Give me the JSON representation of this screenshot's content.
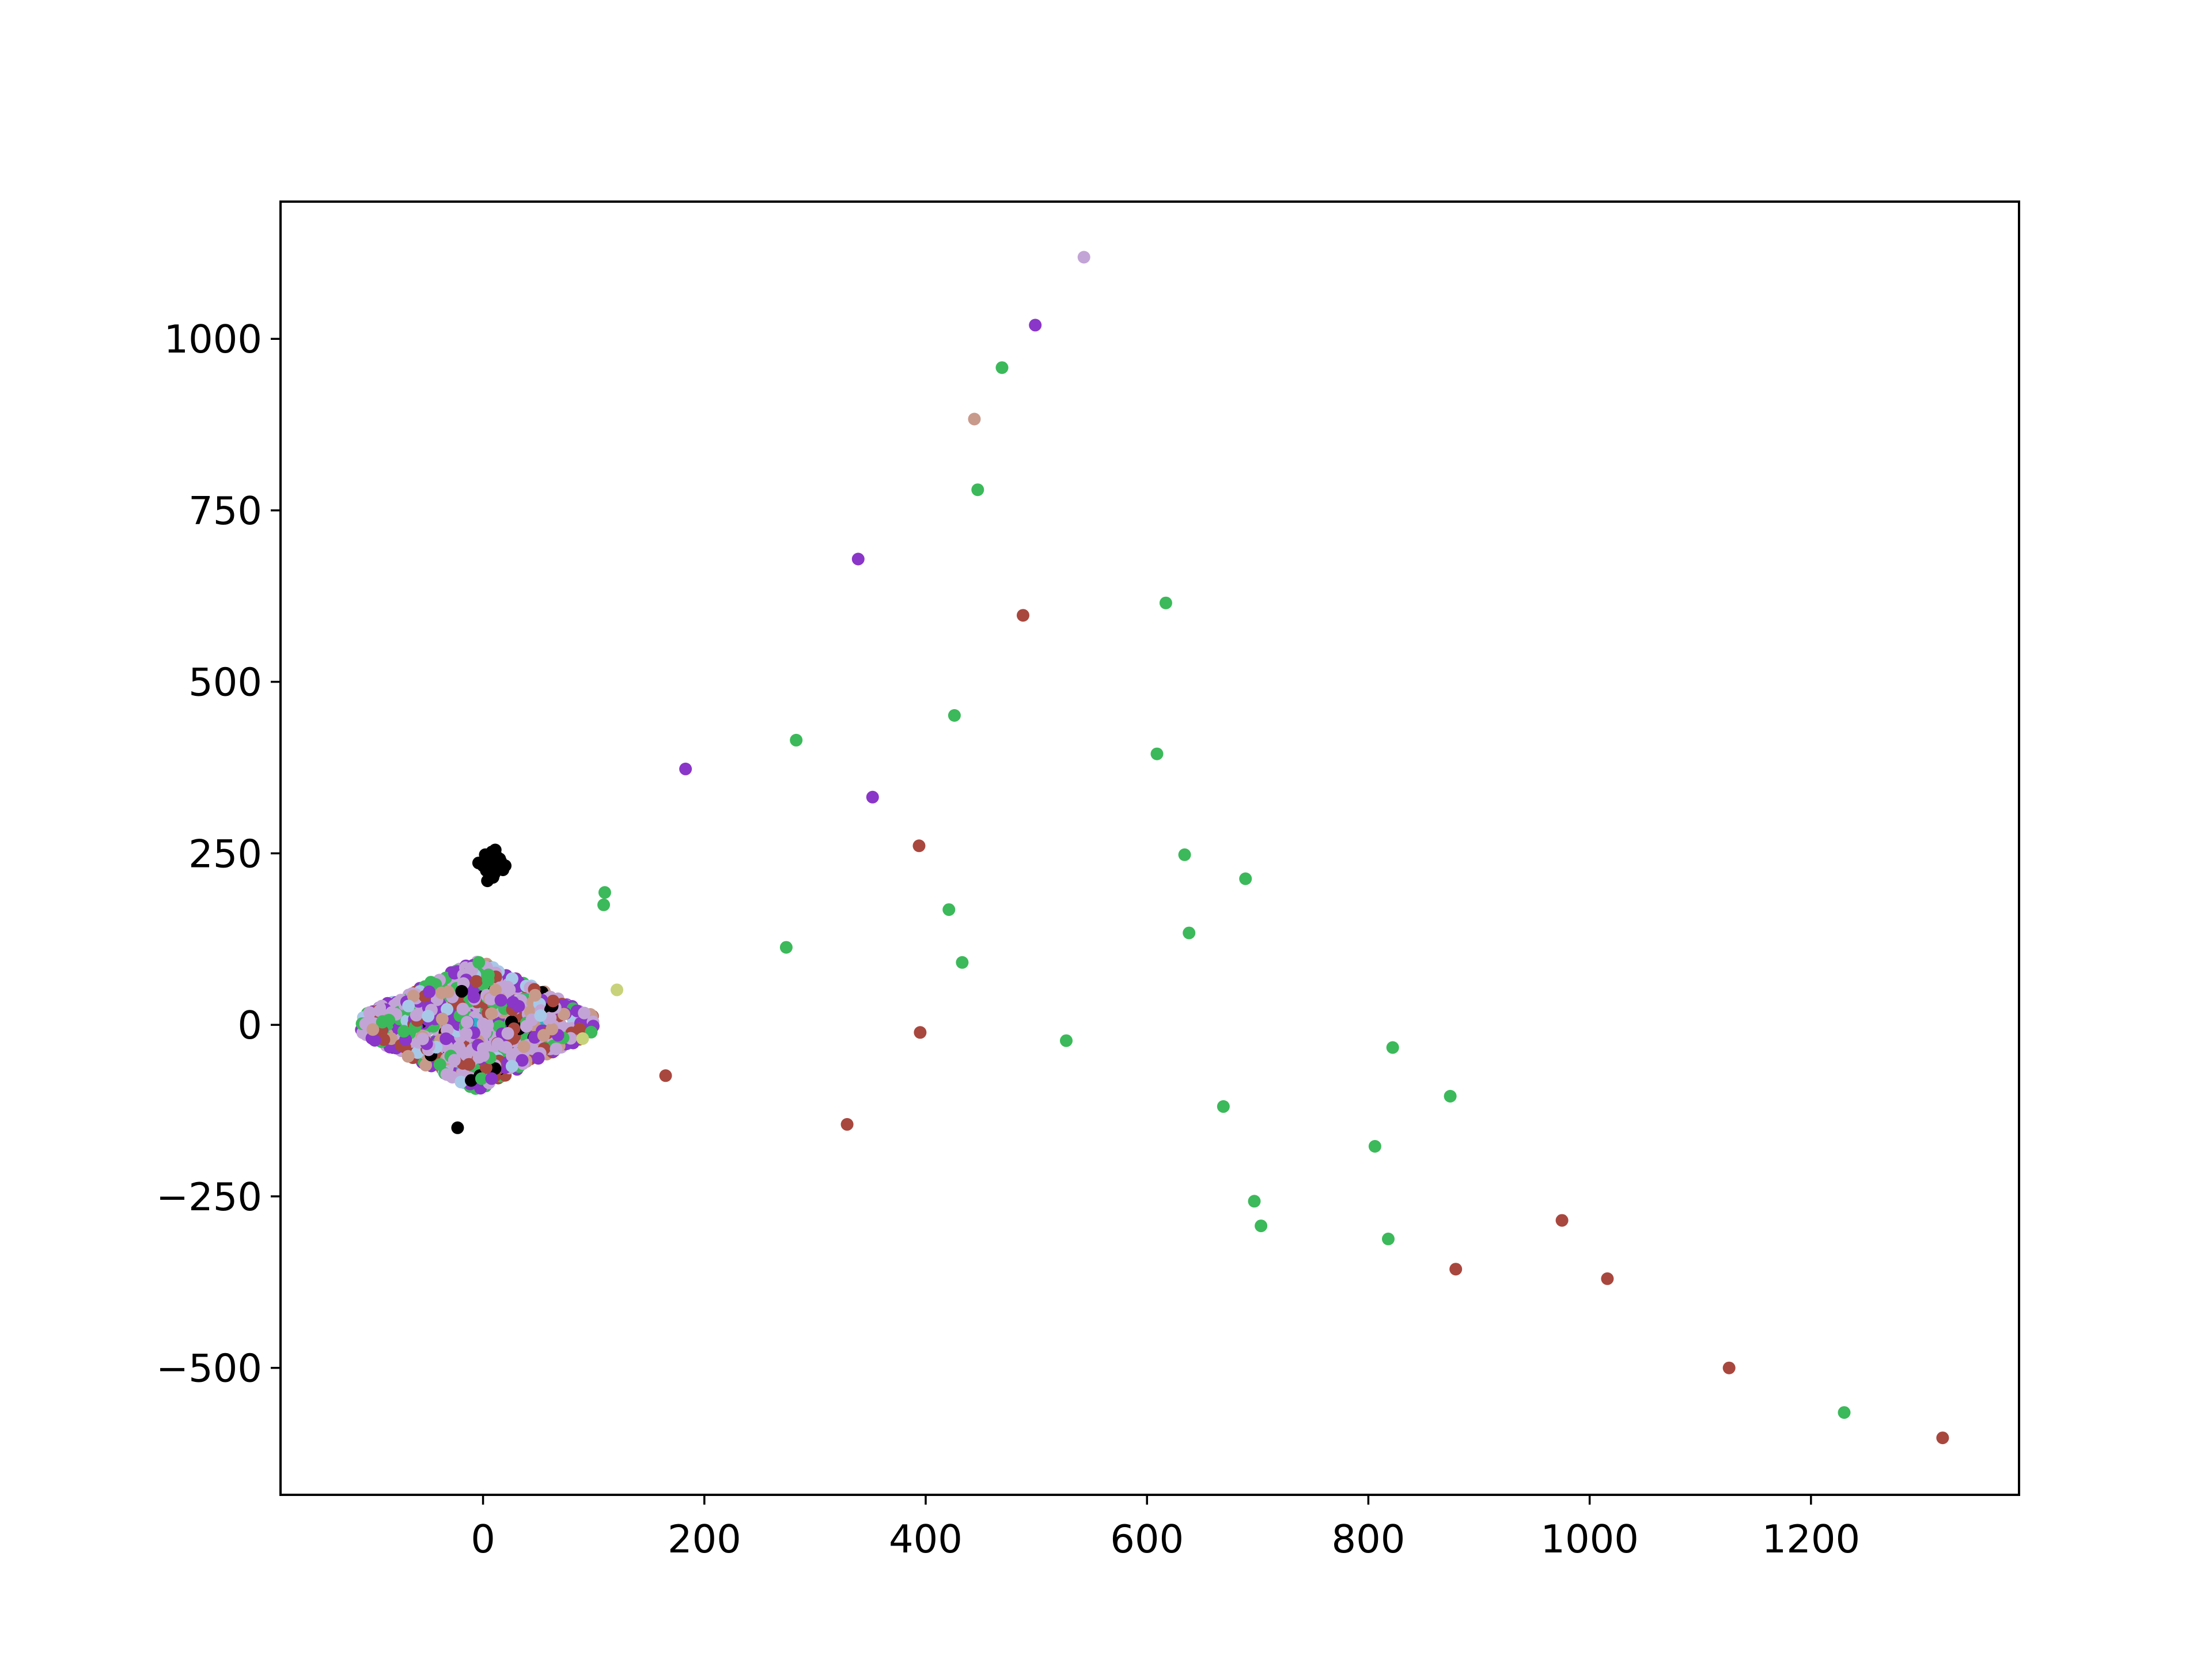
{
  "chart_data": {
    "type": "scatter",
    "title": "",
    "xlabel": "",
    "ylabel": "",
    "xlim": [
      -183,
      1388
    ],
    "ylim": [
      -685,
      1200
    ],
    "xticks": [
      0,
      200,
      400,
      600,
      800,
      1000,
      1200
    ],
    "xtick_labels": [
      "0",
      "200",
      "400",
      "600",
      "800",
      "1000",
      "1200"
    ],
    "yticks": [
      -500,
      -250,
      0,
      250,
      500,
      750,
      1000
    ],
    "ytick_labels": [
      "−500",
      "−250",
      "0",
      "250",
      "500",
      "750",
      "1000"
    ],
    "grid": false,
    "legend": "none",
    "colors": {
      "green": "#3cb95a",
      "brown": "#a8473e",
      "purple": "#8a36c8",
      "lavender": "#c3a4d6",
      "black": "#000000",
      "lightblue": "#a8c8e8",
      "tan": "#c89a8c",
      "olive": "#c8d27a",
      "cyan": "#28b4c8"
    },
    "series": [
      {
        "color": "green",
        "x": [
          110,
          109,
          274,
          283,
          421,
          426,
          433,
          447,
          469,
          527,
          609,
          617,
          634,
          638,
          669,
          689,
          697,
          703,
          806,
          818,
          822,
          874,
          1230
        ],
        "y": [
          193,
          175,
          113,
          415,
          168,
          451,
          91,
          780,
          958,
          -23,
          395,
          615,
          248,
          134,
          -119,
          213,
          -257,
          -293,
          -177,
          -312,
          -33,
          -104,
          -565
        ]
      },
      {
        "color": "brown",
        "x": [
          165,
          329,
          394,
          395,
          488,
          879,
          975,
          1016,
          1126,
          1319
        ],
        "y": [
          -74,
          -145,
          261,
          -11,
          597,
          -356,
          -285,
          -370,
          -500,
          -602
        ]
      },
      {
        "color": "purple",
        "x": [
          183,
          339,
          352,
          499
        ],
        "y": [
          373,
          679,
          332,
          1020
        ]
      },
      {
        "color": "lavender",
        "x": [
          543
        ],
        "y": [
          1119
        ]
      },
      {
        "color": "tan",
        "x": [
          444
        ],
        "y": [
          883
        ]
      },
      {
        "color": "olive",
        "x": [
          121,
          90
        ],
        "y": [
          51,
          -20
        ]
      },
      {
        "color": "black",
        "x": [
          -23,
          0,
          3,
          6,
          8,
          10,
          12,
          14,
          16,
          18,
          20,
          4,
          2,
          9,
          15,
          -4,
          11,
          7
        ],
        "y": [
          -150,
          232,
          225,
          240,
          252,
          220,
          246,
          230,
          238,
          226,
          232,
          210,
          248,
          215,
          242,
          236,
          255,
          228
        ]
      }
    ],
    "dense_cluster": {
      "center": [
        -5,
        0
      ],
      "half_width": 105,
      "half_height": 95,
      "colors": [
        "lavender",
        "purple",
        "green",
        "brown",
        "tan",
        "lightblue",
        "black",
        "cyan"
      ],
      "weights": [
        0.3,
        0.2,
        0.16,
        0.14,
        0.1,
        0.05,
        0.03,
        0.02
      ]
    }
  }
}
